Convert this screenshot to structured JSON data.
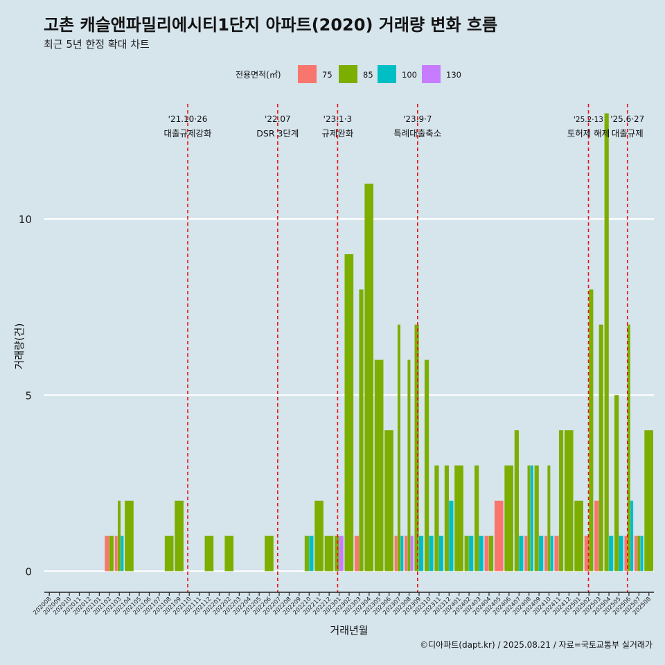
{
  "header": {
    "title": "고촌 캐슬앤파밀리에시티1단지 아파트(2020) 거래량 변화 흐름",
    "subtitle": "최근 5년 한정 확대 차트"
  },
  "legend": {
    "title": "전용면적(㎡)",
    "items": [
      {
        "label": "75",
        "color": "#f8766d"
      },
      {
        "label": "85",
        "color": "#7cae00"
      },
      {
        "label": "100",
        "color": "#00bfc4"
      },
      {
        "label": "130",
        "color": "#c77cff"
      }
    ]
  },
  "footer": {
    "caption": "©디아파트(dapt.kr) / 2025.08.21 / 자료=국토교통부 실거래가"
  },
  "chart_data": {
    "type": "bar",
    "xlabel": "거래년월",
    "ylabel": "거래량(건)",
    "ylim": [
      -0.6,
      13.7
    ],
    "yticks": [
      0,
      5,
      10
    ],
    "grid": true,
    "legend_position": "top",
    "categories": [
      "202008",
      "202009",
      "202010",
      "202011",
      "202012",
      "202101",
      "202102",
      "202103",
      "202104",
      "202105",
      "202106",
      "202107",
      "202108",
      "202109",
      "202110",
      "202111",
      "202112",
      "202201",
      "202202",
      "202203",
      "202204",
      "202205",
      "202206",
      "202207",
      "202208",
      "202209",
      "202210",
      "202211",
      "202212",
      "202301",
      "202302",
      "202303",
      "202304",
      "202305",
      "202306",
      "202307",
      "202308",
      "202309",
      "202310",
      "202311",
      "202312",
      "202401",
      "202402",
      "202403",
      "202404",
      "202405",
      "202406",
      "202407",
      "202408",
      "202409",
      "202410",
      "202411",
      "202412",
      "202501",
      "202502",
      "202503",
      "202504",
      "202505",
      "202506",
      "202507",
      "202508"
    ],
    "series": [
      {
        "name": "75",
        "color": "#f8766d",
        "values": [
          0,
          0,
          0,
          0,
          0,
          0,
          1,
          1,
          0,
          0,
          0,
          0,
          0,
          0,
          0,
          0,
          0,
          0,
          0,
          0,
          0,
          0,
          0,
          0,
          0,
          0,
          0,
          0,
          0,
          0,
          0,
          1,
          0,
          0,
          0,
          1,
          1,
          0,
          0,
          0,
          0,
          0,
          0,
          0,
          1,
          2,
          0,
          0,
          1,
          0,
          1,
          1,
          0,
          0,
          1,
          2,
          0,
          0,
          1,
          1,
          0
        ]
      },
      {
        "name": "85",
        "color": "#7cae00",
        "values": [
          0,
          0,
          0,
          0,
          0,
          0,
          1,
          2,
          2,
          0,
          0,
          0,
          1,
          2,
          0,
          0,
          1,
          0,
          1,
          0,
          0,
          0,
          1,
          0,
          0,
          0,
          1,
          2,
          1,
          1,
          9,
          8,
          11,
          6,
          4,
          7,
          6,
          7,
          6,
          3,
          3,
          3,
          1,
          3,
          1,
          0,
          3,
          4,
          3,
          3,
          3,
          4,
          4,
          2,
          8,
          7,
          13,
          5,
          7,
          1,
          4
        ]
      },
      {
        "name": "100",
        "color": "#00bfc4",
        "values": [
          0,
          0,
          0,
          0,
          0,
          0,
          0,
          1,
          0,
          0,
          0,
          0,
          0,
          0,
          0,
          0,
          0,
          0,
          0,
          0,
          0,
          0,
          0,
          0,
          0,
          0,
          1,
          0,
          0,
          0,
          0,
          0,
          0,
          0,
          0,
          1,
          0,
          1,
          1,
          1,
          2,
          0,
          1,
          1,
          0,
          0,
          0,
          1,
          3,
          1,
          1,
          0,
          0,
          0,
          0,
          0,
          1,
          1,
          2,
          1,
          0
        ]
      },
      {
        "name": "130",
        "color": "#c77cff",
        "values": [
          0,
          0,
          0,
          0,
          0,
          0,
          0,
          0,
          0,
          0,
          0,
          0,
          0,
          0,
          0,
          0,
          0,
          0,
          0,
          0,
          0,
          0,
          0,
          0,
          0,
          0,
          0,
          0,
          0,
          1,
          0,
          0,
          0,
          0,
          0,
          0,
          1,
          0,
          0,
          0,
          0,
          0,
          0,
          0,
          0,
          0,
          0,
          0,
          0,
          0,
          0,
          0,
          0,
          0,
          0,
          0,
          0,
          0,
          0,
          0,
          0
        ]
      }
    ],
    "events": [
      {
        "date": "'21.10·26",
        "label": "대출규제강화",
        "x": "202110"
      },
      {
        "date": "'22.07",
        "label": "DSR 3단계",
        "x": "202207"
      },
      {
        "date": "'23.1·3",
        "label": "규제완화",
        "x": "202301"
      },
      {
        "date": "'23.9·7",
        "label": "특례대출축소",
        "x": "202309"
      },
      {
        "date": "'25.2·13",
        "label": "토허제 해제",
        "x": "202502"
      },
      {
        "date": "'25.6·27",
        "label": "대출규제",
        "x": "202506"
      }
    ]
  }
}
